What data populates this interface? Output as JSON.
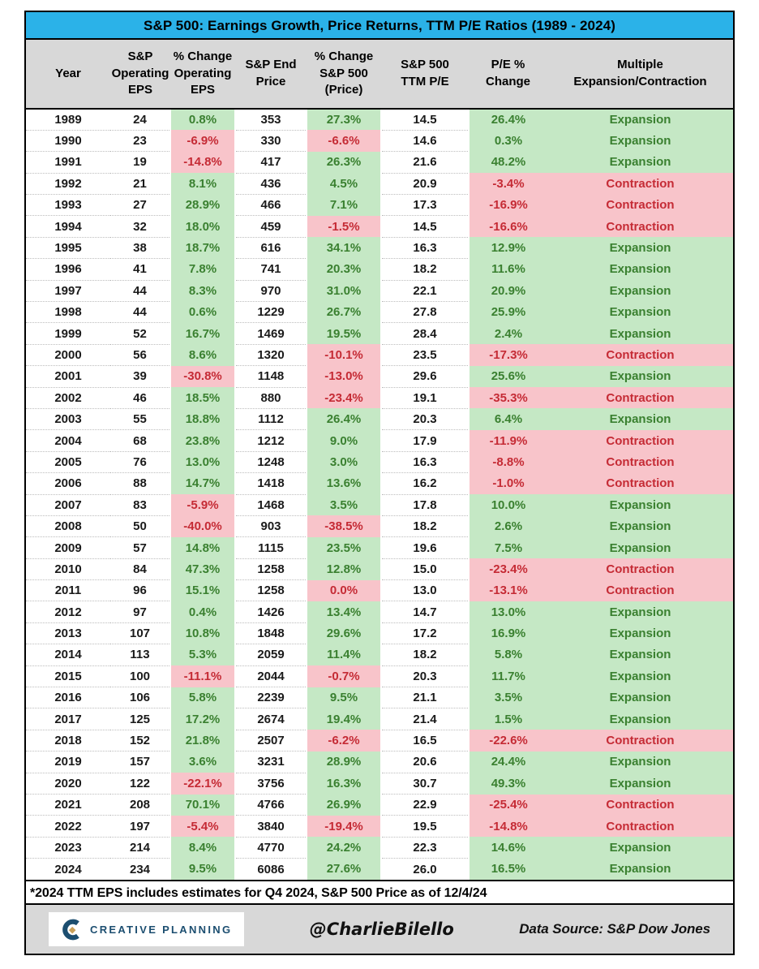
{
  "chart_data": {
    "type": "table",
    "title": "S&P 500: Earnings Growth, Price Returns, TTM P/E Ratios (1989 - 2024)",
    "columns": [
      "Year",
      "S&P\nOperating\nEPS",
      "% Change\nOperating\nEPS",
      "S&P End\nPrice",
      "% Change\nS&P 500\n(Price)",
      "S&P 500\nTTM P/E",
      "P/E %\nChange",
      "Multiple\nExpansion/Contraction"
    ],
    "rows": [
      [
        "1989",
        "24",
        "0.8%",
        "353",
        "27.3%",
        "14.5",
        "26.4%",
        "Expansion",
        "g",
        "g",
        "g"
      ],
      [
        "1990",
        "23",
        "-6.9%",
        "330",
        "-6.6%",
        "14.6",
        "0.3%",
        "Expansion",
        "r",
        "r",
        "g"
      ],
      [
        "1991",
        "19",
        "-14.8%",
        "417",
        "26.3%",
        "21.6",
        "48.2%",
        "Expansion",
        "r",
        "g",
        "g"
      ],
      [
        "1992",
        "21",
        "8.1%",
        "436",
        "4.5%",
        "20.9",
        "-3.4%",
        "Contraction",
        "g",
        "g",
        "r"
      ],
      [
        "1993",
        "27",
        "28.9%",
        "466",
        "7.1%",
        "17.3",
        "-16.9%",
        "Contraction",
        "g",
        "g",
        "r"
      ],
      [
        "1994",
        "32",
        "18.0%",
        "459",
        "-1.5%",
        "14.5",
        "-16.6%",
        "Contraction",
        "g",
        "r",
        "r"
      ],
      [
        "1995",
        "38",
        "18.7%",
        "616",
        "34.1%",
        "16.3",
        "12.9%",
        "Expansion",
        "g",
        "g",
        "g"
      ],
      [
        "1996",
        "41",
        "7.8%",
        "741",
        "20.3%",
        "18.2",
        "11.6%",
        "Expansion",
        "g",
        "g",
        "g"
      ],
      [
        "1997",
        "44",
        "8.3%",
        "970",
        "31.0%",
        "22.1",
        "20.9%",
        "Expansion",
        "g",
        "g",
        "g"
      ],
      [
        "1998",
        "44",
        "0.6%",
        "1229",
        "26.7%",
        "27.8",
        "25.9%",
        "Expansion",
        "g",
        "g",
        "g"
      ],
      [
        "1999",
        "52",
        "16.7%",
        "1469",
        "19.5%",
        "28.4",
        "2.4%",
        "Expansion",
        "g",
        "g",
        "g"
      ],
      [
        "2000",
        "56",
        "8.6%",
        "1320",
        "-10.1%",
        "23.5",
        "-17.3%",
        "Contraction",
        "g",
        "r",
        "r"
      ],
      [
        "2001",
        "39",
        "-30.8%",
        "1148",
        "-13.0%",
        "29.6",
        "25.6%",
        "Expansion",
        "r",
        "r",
        "g"
      ],
      [
        "2002",
        "46",
        "18.5%",
        "880",
        "-23.4%",
        "19.1",
        "-35.3%",
        "Contraction",
        "g",
        "r",
        "r"
      ],
      [
        "2003",
        "55",
        "18.8%",
        "1112",
        "26.4%",
        "20.3",
        "6.4%",
        "Expansion",
        "g",
        "g",
        "g"
      ],
      [
        "2004",
        "68",
        "23.8%",
        "1212",
        "9.0%",
        "17.9",
        "-11.9%",
        "Contraction",
        "g",
        "g",
        "r"
      ],
      [
        "2005",
        "76",
        "13.0%",
        "1248",
        "3.0%",
        "16.3",
        "-8.8%",
        "Contraction",
        "g",
        "g",
        "r"
      ],
      [
        "2006",
        "88",
        "14.7%",
        "1418",
        "13.6%",
        "16.2",
        "-1.0%",
        "Contraction",
        "g",
        "g",
        "r"
      ],
      [
        "2007",
        "83",
        "-5.9%",
        "1468",
        "3.5%",
        "17.8",
        "10.0%",
        "Expansion",
        "r",
        "g",
        "g"
      ],
      [
        "2008",
        "50",
        "-40.0%",
        "903",
        "-38.5%",
        "18.2",
        "2.6%",
        "Expansion",
        "r",
        "r",
        "g"
      ],
      [
        "2009",
        "57",
        "14.8%",
        "1115",
        "23.5%",
        "19.6",
        "7.5%",
        "Expansion",
        "g",
        "g",
        "g"
      ],
      [
        "2010",
        "84",
        "47.3%",
        "1258",
        "12.8%",
        "15.0",
        "-23.4%",
        "Contraction",
        "g",
        "g",
        "r"
      ],
      [
        "2011",
        "96",
        "15.1%",
        "1258",
        "0.0%",
        "13.0",
        "-13.1%",
        "Contraction",
        "g",
        "r",
        "r"
      ],
      [
        "2012",
        "97",
        "0.4%",
        "1426",
        "13.4%",
        "14.7",
        "13.0%",
        "Expansion",
        "g",
        "g",
        "g"
      ],
      [
        "2013",
        "107",
        "10.8%",
        "1848",
        "29.6%",
        "17.2",
        "16.9%",
        "Expansion",
        "g",
        "g",
        "g"
      ],
      [
        "2014",
        "113",
        "5.3%",
        "2059",
        "11.4%",
        "18.2",
        "5.8%",
        "Expansion",
        "g",
        "g",
        "g"
      ],
      [
        "2015",
        "100",
        "-11.1%",
        "2044",
        "-0.7%",
        "20.3",
        "11.7%",
        "Expansion",
        "r",
        "r",
        "g"
      ],
      [
        "2016",
        "106",
        "5.8%",
        "2239",
        "9.5%",
        "21.1",
        "3.5%",
        "Expansion",
        "g",
        "g",
        "g"
      ],
      [
        "2017",
        "125",
        "17.2%",
        "2674",
        "19.4%",
        "21.4",
        "1.5%",
        "Expansion",
        "g",
        "g",
        "g"
      ],
      [
        "2018",
        "152",
        "21.8%",
        "2507",
        "-6.2%",
        "16.5",
        "-22.6%",
        "Contraction",
        "g",
        "r",
        "r"
      ],
      [
        "2019",
        "157",
        "3.6%",
        "3231",
        "28.9%",
        "20.6",
        "24.4%",
        "Expansion",
        "g",
        "g",
        "g"
      ],
      [
        "2020",
        "122",
        "-22.1%",
        "3756",
        "16.3%",
        "30.7",
        "49.3%",
        "Expansion",
        "r",
        "g",
        "g"
      ],
      [
        "2021",
        "208",
        "70.1%",
        "4766",
        "26.9%",
        "22.9",
        "-25.4%",
        "Contraction",
        "g",
        "g",
        "r"
      ],
      [
        "2022",
        "197",
        "-5.4%",
        "3840",
        "-19.4%",
        "19.5",
        "-14.8%",
        "Contraction",
        "r",
        "r",
        "r"
      ],
      [
        "2023",
        "214",
        "8.4%",
        "4770",
        "24.2%",
        "22.3",
        "14.6%",
        "Expansion",
        "g",
        "g",
        "g"
      ],
      [
        "2024",
        "234",
        "9.5%",
        "6086",
        "27.6%",
        "26.0",
        "16.5%",
        "Expansion",
        "g",
        "g",
        "g"
      ]
    ],
    "legend_position": "none",
    "grid": "dotted-row-separators"
  },
  "footnote": "*2024 TTM EPS includes estimates for Q4 2024, S&P 500 Price as of 12/4/24",
  "footer": {
    "logo_text": "CREATIVE PLANNING",
    "handle": "@CharlieBilello",
    "source": "Data Source: S&P Dow Jones"
  },
  "colors": {
    "title_bg": "#2BB2E8",
    "header_bg": "#D8D8D8",
    "footer_bg": "#D8D8D8",
    "green_bg": "#C5E8C5",
    "green_text": "#3A8030",
    "red_bg": "#F8C4CA",
    "red_text": "#C52B35",
    "logo_navy": "#1C4E70",
    "logo_gold": "#C9A05A"
  }
}
